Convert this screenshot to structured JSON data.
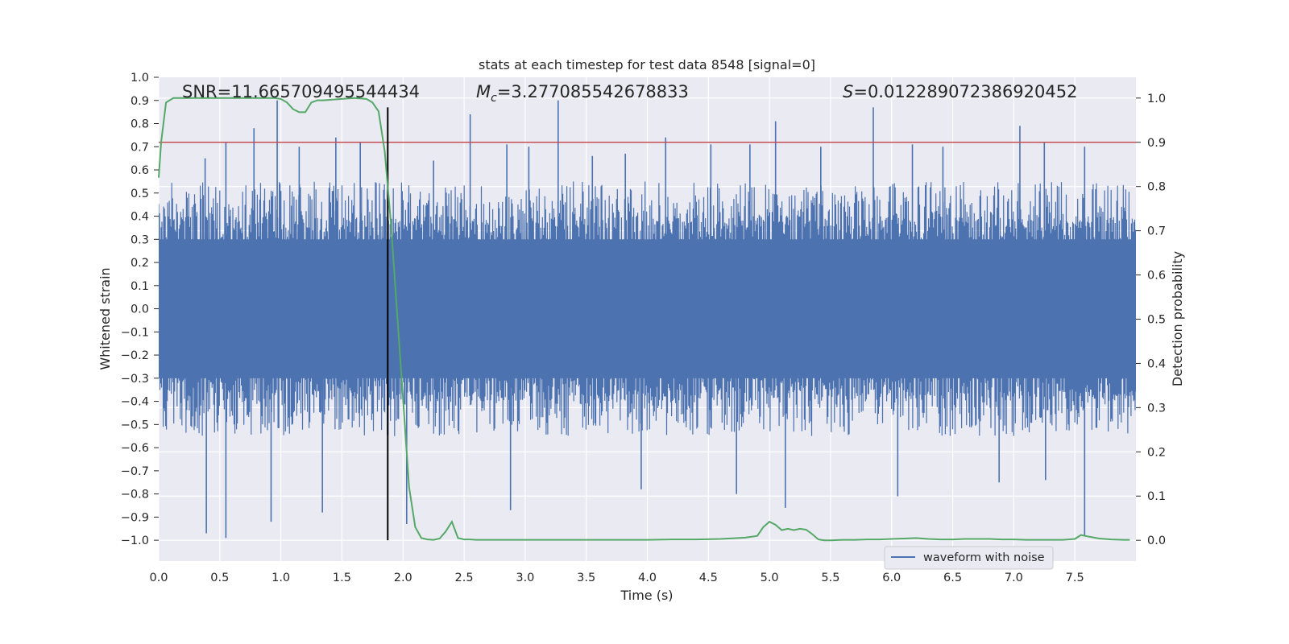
{
  "chart_data": {
    "type": "line",
    "title": "stats at each timestep for test data 8548 [signal=0]",
    "xlabel": "Time (s)",
    "ylabel": "Whitened strain",
    "y2label": "Detection probability",
    "xlim": [
      0.0,
      8.0
    ],
    "ylim": [
      -1.09,
      1.0
    ],
    "y2lim": [
      -0.047,
      1.047
    ],
    "xticks": [
      "0.0",
      "0.5",
      "1.0",
      "1.5",
      "2.0",
      "2.5",
      "3.0",
      "3.5",
      "4.0",
      "4.5",
      "5.0",
      "5.5",
      "6.0",
      "6.5",
      "7.0",
      "7.5"
    ],
    "yticks": [
      "1.0",
      "0.9",
      "0.8",
      "0.7",
      "0.6",
      "0.5",
      "0.4",
      "0.3",
      "0.2",
      "0.1",
      "0.0",
      "−0.1",
      "−0.2",
      "−0.3",
      "−0.4",
      "−0.5",
      "−0.6",
      "−0.7",
      "−0.8",
      "−0.9",
      "−1.0"
    ],
    "y2ticks": [
      "1.0",
      "0.9",
      "0.8",
      "0.7",
      "0.6",
      "0.5",
      "0.4",
      "0.3",
      "0.2",
      "0.1",
      "0.0"
    ],
    "annotations": {
      "snr": "SNR=11.665709495544434",
      "mc_symbol": "M",
      "mc_subscript": "c",
      "mc_value": "=3.277085542678833",
      "s_symbol": "S",
      "s_value": "=0.012289072386920452"
    },
    "threshold": {
      "value": 0.9,
      "axis": "y2",
      "color": "#c44e52"
    },
    "vertical_line": {
      "x": 1.875,
      "y_from": -1.0,
      "y_to": 0.87,
      "color": "#000000"
    },
    "waveform": {
      "name": "waveform with noise",
      "color": "#4c72b0",
      "envelope_upper_typical": 0.45,
      "envelope_lower_typical": -0.45,
      "spikes_up": [
        [
          0.38,
          0.65
        ],
        [
          0.55,
          0.72
        ],
        [
          0.78,
          0.78
        ],
        [
          0.97,
          0.9
        ],
        [
          1.15,
          0.7
        ],
        [
          1.45,
          0.74
        ],
        [
          1.65,
          0.72
        ],
        [
          2.25,
          0.64
        ],
        [
          2.55,
          0.84
        ],
        [
          2.85,
          0.71
        ],
        [
          3.03,
          0.7
        ],
        [
          3.27,
          0.9
        ],
        [
          3.55,
          0.66
        ],
        [
          3.82,
          0.67
        ],
        [
          4.15,
          0.74
        ],
        [
          4.52,
          0.71
        ],
        [
          4.84,
          0.71
        ],
        [
          5.05,
          0.81
        ],
        [
          5.42,
          0.7
        ],
        [
          5.85,
          0.87
        ],
        [
          6.17,
          0.71
        ],
        [
          6.42,
          0.7
        ],
        [
          7.05,
          0.79
        ],
        [
          7.25,
          0.72
        ],
        [
          7.58,
          0.7
        ]
      ],
      "spikes_down": [
        [
          0.39,
          -0.97
        ],
        [
          0.55,
          -0.99
        ],
        [
          0.92,
          -0.92
        ],
        [
          1.34,
          -0.88
        ],
        [
          2.03,
          -0.93
        ],
        [
          2.88,
          -0.87
        ],
        [
          3.95,
          -0.78
        ],
        [
          4.73,
          -0.8
        ],
        [
          5.13,
          -0.86
        ],
        [
          6.05,
          -0.81
        ],
        [
          6.88,
          -0.75
        ],
        [
          7.26,
          -0.74
        ],
        [
          7.58,
          -0.98
        ]
      ]
    },
    "detection_probability": {
      "color": "#55a868",
      "x": [
        0.0,
        0.02,
        0.06,
        0.12,
        0.2,
        0.4,
        0.6,
        0.8,
        0.95,
        1.0,
        1.05,
        1.1,
        1.15,
        1.2,
        1.25,
        1.3,
        1.35,
        1.4,
        1.5,
        1.6,
        1.7,
        1.75,
        1.8,
        1.85,
        1.9,
        1.95,
        2.0,
        2.05,
        2.1,
        2.15,
        2.2,
        2.25,
        2.3,
        2.35,
        2.4,
        2.45,
        2.5,
        2.55,
        2.6,
        2.8,
        3.0,
        3.2,
        3.4,
        3.6,
        3.8,
        4.0,
        4.2,
        4.4,
        4.6,
        4.8,
        4.9,
        4.95,
        5.0,
        5.05,
        5.1,
        5.15,
        5.2,
        5.25,
        5.3,
        5.35,
        5.4,
        5.45,
        5.5,
        5.6,
        5.7,
        5.8,
        5.9,
        6.0,
        6.1,
        6.2,
        6.3,
        6.4,
        6.5,
        6.6,
        6.7,
        6.8,
        6.9,
        7.0,
        7.1,
        7.2,
        7.3,
        7.4,
        7.5,
        7.55,
        7.6,
        7.7,
        7.8,
        7.9,
        7.95
      ],
      "y": [
        0.82,
        0.9,
        0.99,
        1.0,
        1.0,
        1.0,
        1.0,
        1.0,
        1.0,
        0.998,
        0.99,
        0.975,
        0.968,
        0.968,
        0.99,
        0.995,
        0.995,
        0.996,
        0.998,
        1.0,
        0.998,
        0.99,
        0.97,
        0.88,
        0.72,
        0.52,
        0.32,
        0.12,
        0.03,
        0.005,
        0.002,
        0.001,
        0.004,
        0.02,
        0.042,
        0.005,
        0.002,
        0.002,
        0.001,
        0.001,
        0.001,
        0.001,
        0.001,
        0.001,
        0.001,
        0.001,
        0.002,
        0.002,
        0.003,
        0.006,
        0.01,
        0.03,
        0.042,
        0.035,
        0.023,
        0.026,
        0.023,
        0.026,
        0.024,
        0.014,
        0.002,
        0.0,
        0.0,
        0.001,
        0.001,
        0.002,
        0.002,
        0.003,
        0.004,
        0.005,
        0.003,
        0.002,
        0.002,
        0.003,
        0.003,
        0.003,
        0.002,
        0.002,
        0.001,
        0.001,
        0.001,
        0.001,
        0.003,
        0.012,
        0.009,
        0.004,
        0.002,
        0.001,
        0.001
      ]
    },
    "legend": {
      "entries": [
        "waveform with noise"
      ],
      "location": "lower-right"
    }
  }
}
